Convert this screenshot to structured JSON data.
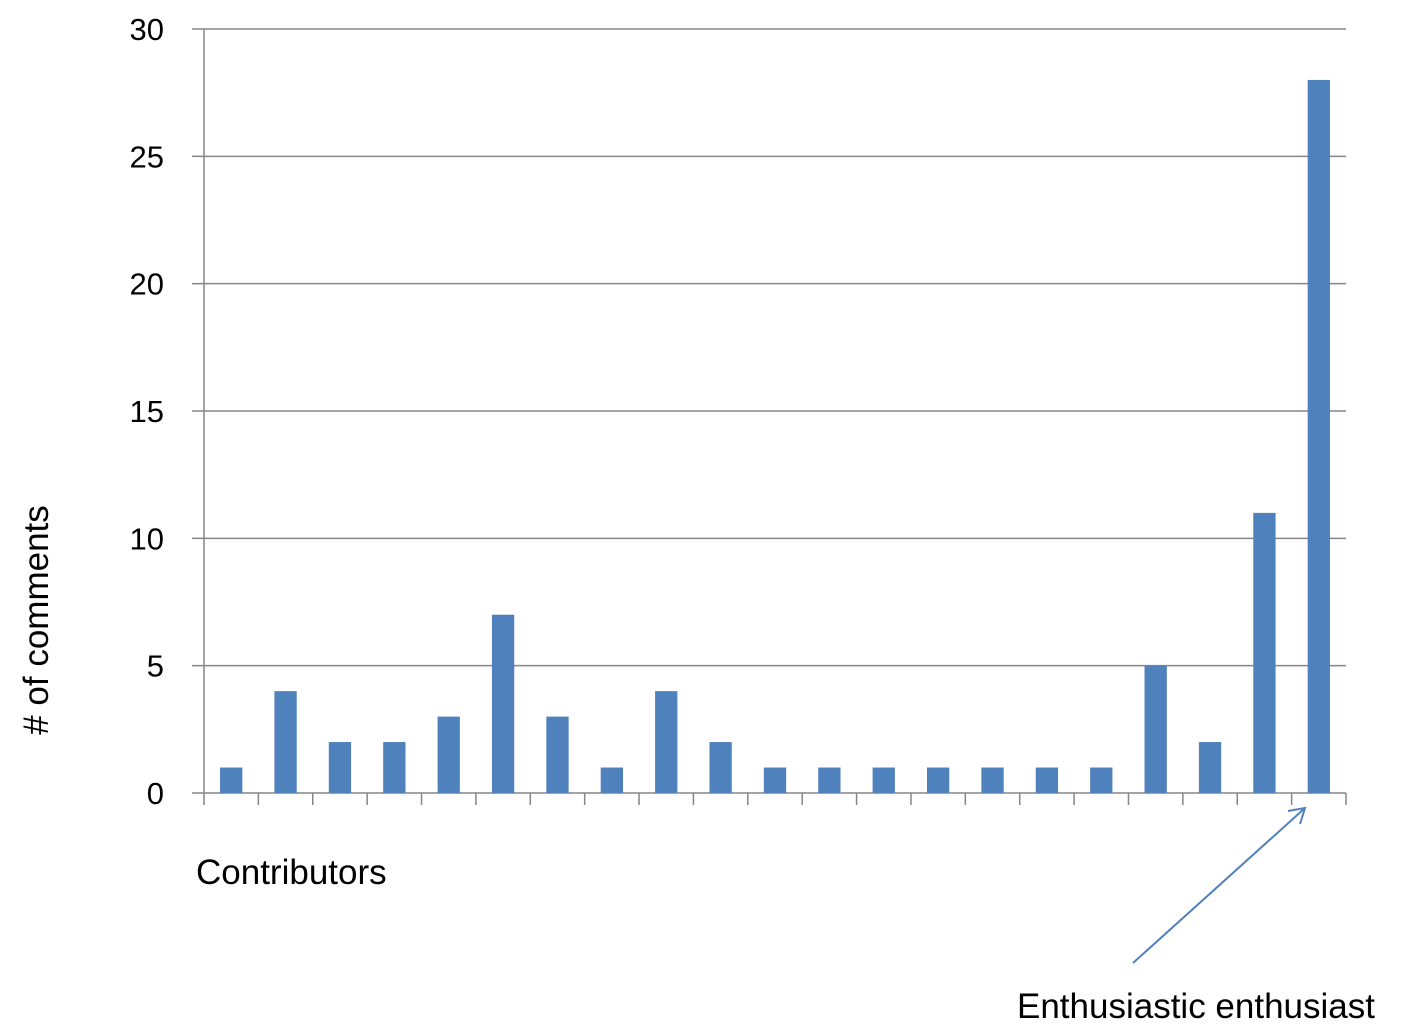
{
  "chart_data": {
    "type": "bar",
    "categories": [
      "",
      "",
      "",
      "",
      "",
      "",
      "",
      "",
      "",
      "",
      "",
      "",
      "",
      "",
      "",
      "",
      "",
      "",
      "",
      "",
      ""
    ],
    "values": [
      1,
      4,
      2,
      2,
      3,
      7,
      3,
      1,
      4,
      2,
      1,
      1,
      1,
      1,
      1,
      1,
      1,
      5,
      2,
      11,
      28
    ],
    "xlabel": "Contributors",
    "ylabel": "# of comments",
    "ylim": [
      0,
      30
    ],
    "yticks": [
      0,
      5,
      10,
      15,
      20,
      25,
      30
    ],
    "grid": true,
    "bar_color": "#4F81BD",
    "annotation": {
      "text": "Enthusiastic enthusiast",
      "target_index": 20
    }
  }
}
